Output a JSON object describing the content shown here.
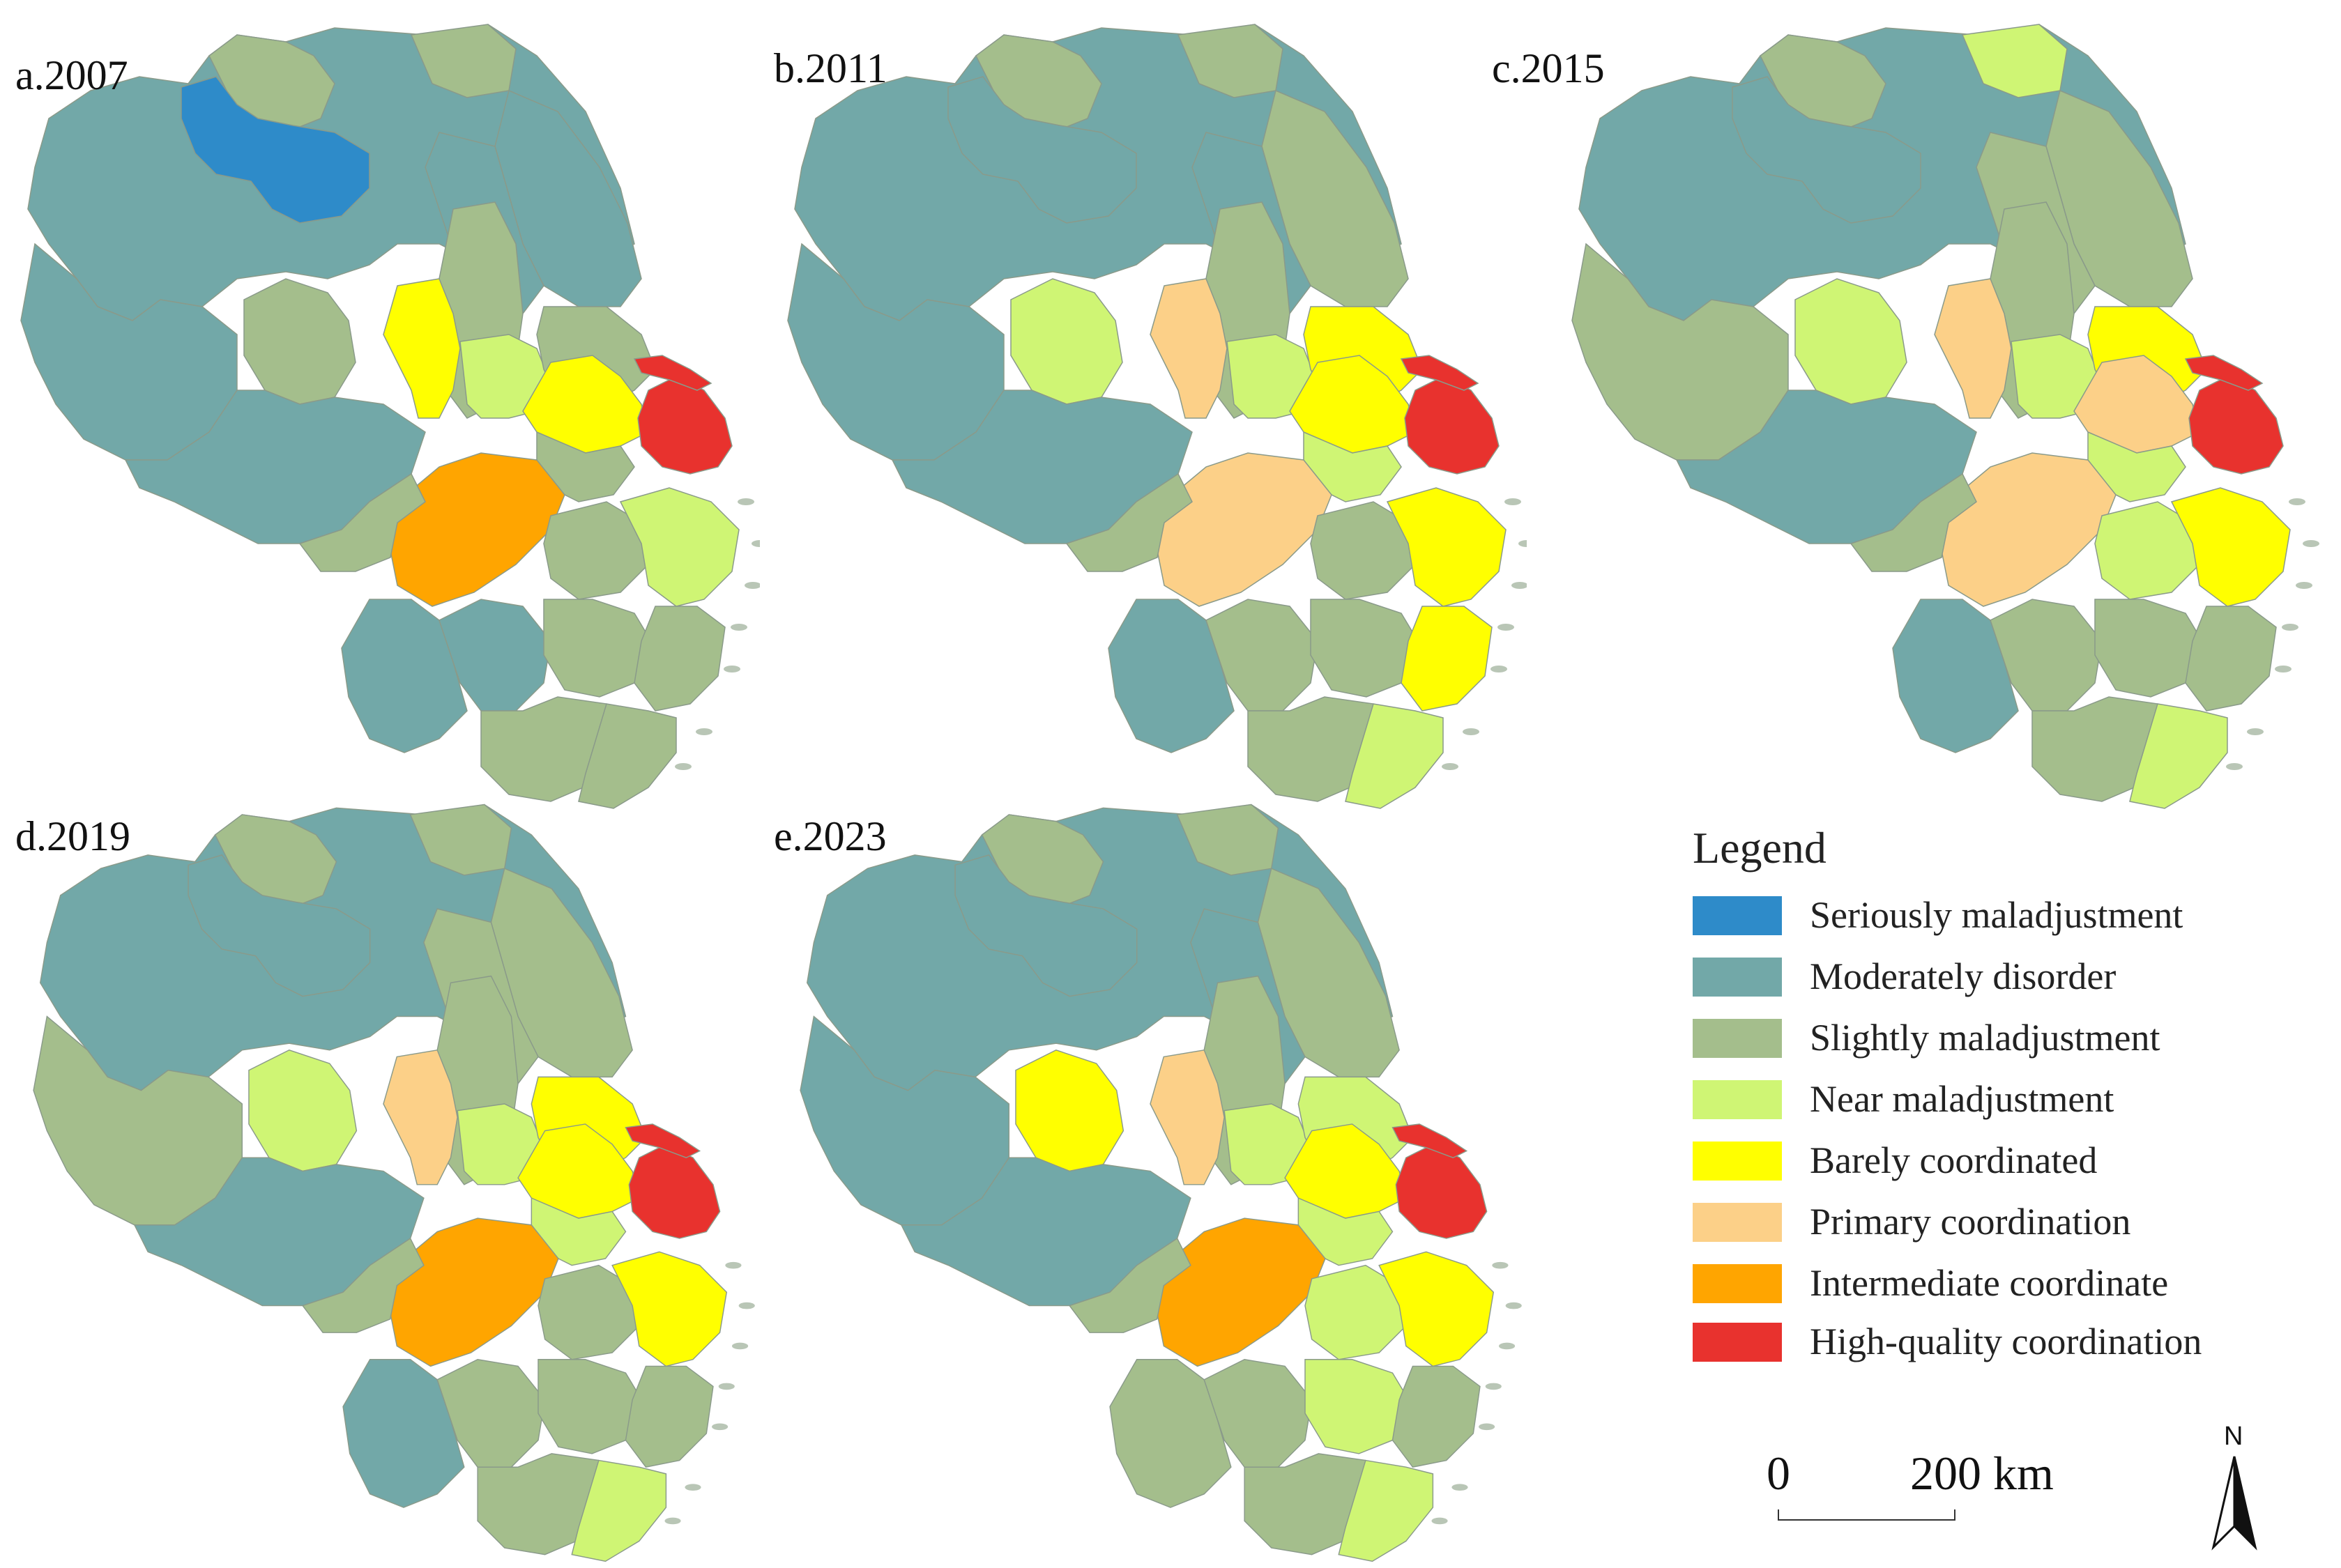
{
  "colors": {
    "seriously": "#2E8BC9",
    "moderately": "#72A8A8",
    "slightly": "#A4BE8C",
    "near": "#CFF574",
    "barely": "#FFFF00",
    "primary": "#FCD088",
    "intermediate": "#FFA500",
    "high": "#E8322E",
    "border": "#8a9a8a"
  },
  "panels": [
    {
      "label": "a.2007",
      "key": "p2007"
    },
    {
      "label": "b.2011",
      "key": "p2011"
    },
    {
      "label": "c.2015",
      "key": "p2015"
    },
    {
      "label": "d.2019",
      "key": "p2019"
    },
    {
      "label": "e.2023",
      "key": "p2023"
    }
  ],
  "legend": {
    "title": "Legend",
    "items": [
      {
        "label": "Seriously maladjustment",
        "class": "seriously",
        "color": "#2E8BC9"
      },
      {
        "label": "Moderately disorder",
        "class": "moderately",
        "color": "#72A8A8"
      },
      {
        "label": "Slightly maladjustment",
        "class": "slightly",
        "color": "#A4BE8C"
      },
      {
        "label": "Near maladjustment",
        "class": "near",
        "color": "#CFF574"
      },
      {
        "label": "Barely coordinated",
        "class": "barely",
        "color": "#FFFF00"
      },
      {
        "label": "Primary coordination",
        "class": "primary",
        "color": "#FCD088"
      },
      {
        "label": "Intermediate coordinate",
        "class": "intermediate",
        "color": "#FFA500"
      },
      {
        "label": "High-quality coordination",
        "class": "high",
        "color": "#E8322E"
      }
    ]
  },
  "scale": {
    "zero": "0",
    "distance": "200 km"
  },
  "north": {
    "label": "N"
  },
  "regions": {
    "north_jiangsu_west": {
      "p2007": "moderately",
      "p2011": "moderately",
      "p2015": "moderately",
      "p2019": "moderately",
      "p2023": "moderately"
    },
    "north_jiangsu_top": {
      "p2007": "slightly",
      "p2011": "slightly",
      "p2015": "slightly",
      "p2019": "slightly",
      "p2023": "slightly"
    },
    "north_jiangsu_seriously": {
      "p2007": "seriously",
      "p2011": "moderately",
      "p2015": "moderately",
      "p2019": "moderately",
      "p2023": "moderately"
    },
    "north_jiangsu_east": {
      "p2007": "moderately",
      "p2011": "moderately",
      "p2015": "slightly",
      "p2019": "slightly",
      "p2023": "moderately"
    },
    "north_coast": {
      "p2007": "moderately",
      "p2011": "slightly",
      "p2015": "slightly",
      "p2019": "slightly",
      "p2023": "slightly"
    },
    "north_tip": {
      "p2007": "slightly",
      "p2011": "slightly",
      "p2015": "near",
      "p2019": "slightly",
      "p2023": "slightly"
    },
    "anhui_west": {
      "p2007": "moderately",
      "p2011": "moderately",
      "p2015": "slightly",
      "p2019": "slightly",
      "p2023": "moderately"
    },
    "anhui_hefei": {
      "p2007": "slightly",
      "p2011": "near",
      "p2015": "near",
      "p2019": "near",
      "p2023": "barely"
    },
    "anhui_south": {
      "p2007": "moderately",
      "p2011": "moderately",
      "p2015": "moderately",
      "p2019": "moderately",
      "p2023": "moderately"
    },
    "nanjing": {
      "p2007": "barely",
      "p2011": "primary",
      "p2015": "primary",
      "p2019": "primary",
      "p2023": "primary"
    },
    "central_strip": {
      "p2007": "slightly",
      "p2011": "slightly",
      "p2015": "slightly",
      "p2019": "slightly",
      "p2023": "slightly"
    },
    "yangzhou_tai": {
      "p2007": "near",
      "p2011": "near",
      "p2015": "near",
      "p2019": "near",
      "p2023": "near"
    },
    "suzhou_wuxi": {
      "p2007": "barely",
      "p2011": "barely",
      "p2015": "primary",
      "p2019": "barely",
      "p2023": "barely"
    },
    "nantong": {
      "p2007": "slightly",
      "p2011": "barely",
      "p2015": "barely",
      "p2019": "barely",
      "p2023": "near"
    },
    "shanghai": {
      "p2007": "high",
      "p2011": "high",
      "p2015": "high",
      "p2019": "high",
      "p2023": "high"
    },
    "chongming": {
      "p2007": "high",
      "p2011": "high",
      "p2015": "high",
      "p2019": "high",
      "p2023": "high"
    },
    "jiaxing": {
      "p2007": "slightly",
      "p2011": "near",
      "p2015": "near",
      "p2019": "near",
      "p2023": "near"
    },
    "hangzhou": {
      "p2007": "intermediate",
      "p2011": "primary",
      "p2015": "primary",
      "p2019": "intermediate",
      "p2023": "intermediate"
    },
    "xuancheng": {
      "p2007": "slightly",
      "p2011": "slightly",
      "p2015": "slightly",
      "p2019": "slightly",
      "p2023": "slightly"
    },
    "huangshan": {
      "p2007": "moderately",
      "p2011": "moderately",
      "p2015": "moderately",
      "p2019": "moderately",
      "p2023": "slightly"
    },
    "quzhou": {
      "p2007": "moderately",
      "p2011": "slightly",
      "p2015": "slightly",
      "p2019": "slightly",
      "p2023": "slightly"
    },
    "jinhua": {
      "p2007": "slightly",
      "p2011": "slightly",
      "p2015": "slightly",
      "p2019": "slightly",
      "p2023": "near"
    },
    "shaoxing": {
      "p2007": "slightly",
      "p2011": "slightly",
      "p2015": "near",
      "p2019": "slightly",
      "p2023": "near"
    },
    "ningbo": {
      "p2007": "near",
      "p2011": "barely",
      "p2015": "barely",
      "p2019": "barely",
      "p2023": "barely"
    },
    "taizhou_zj": {
      "p2007": "slightly",
      "p2011": "barely",
      "p2015": "slightly",
      "p2019": "slightly",
      "p2023": "slightly"
    },
    "lishui": {
      "p2007": "slightly",
      "p2011": "slightly",
      "p2015": "slightly",
      "p2019": "slightly",
      "p2023": "slightly"
    },
    "wenzhou": {
      "p2007": "slightly",
      "p2011": "near",
      "p2015": "near",
      "p2019": "near",
      "p2023": "near"
    }
  }
}
